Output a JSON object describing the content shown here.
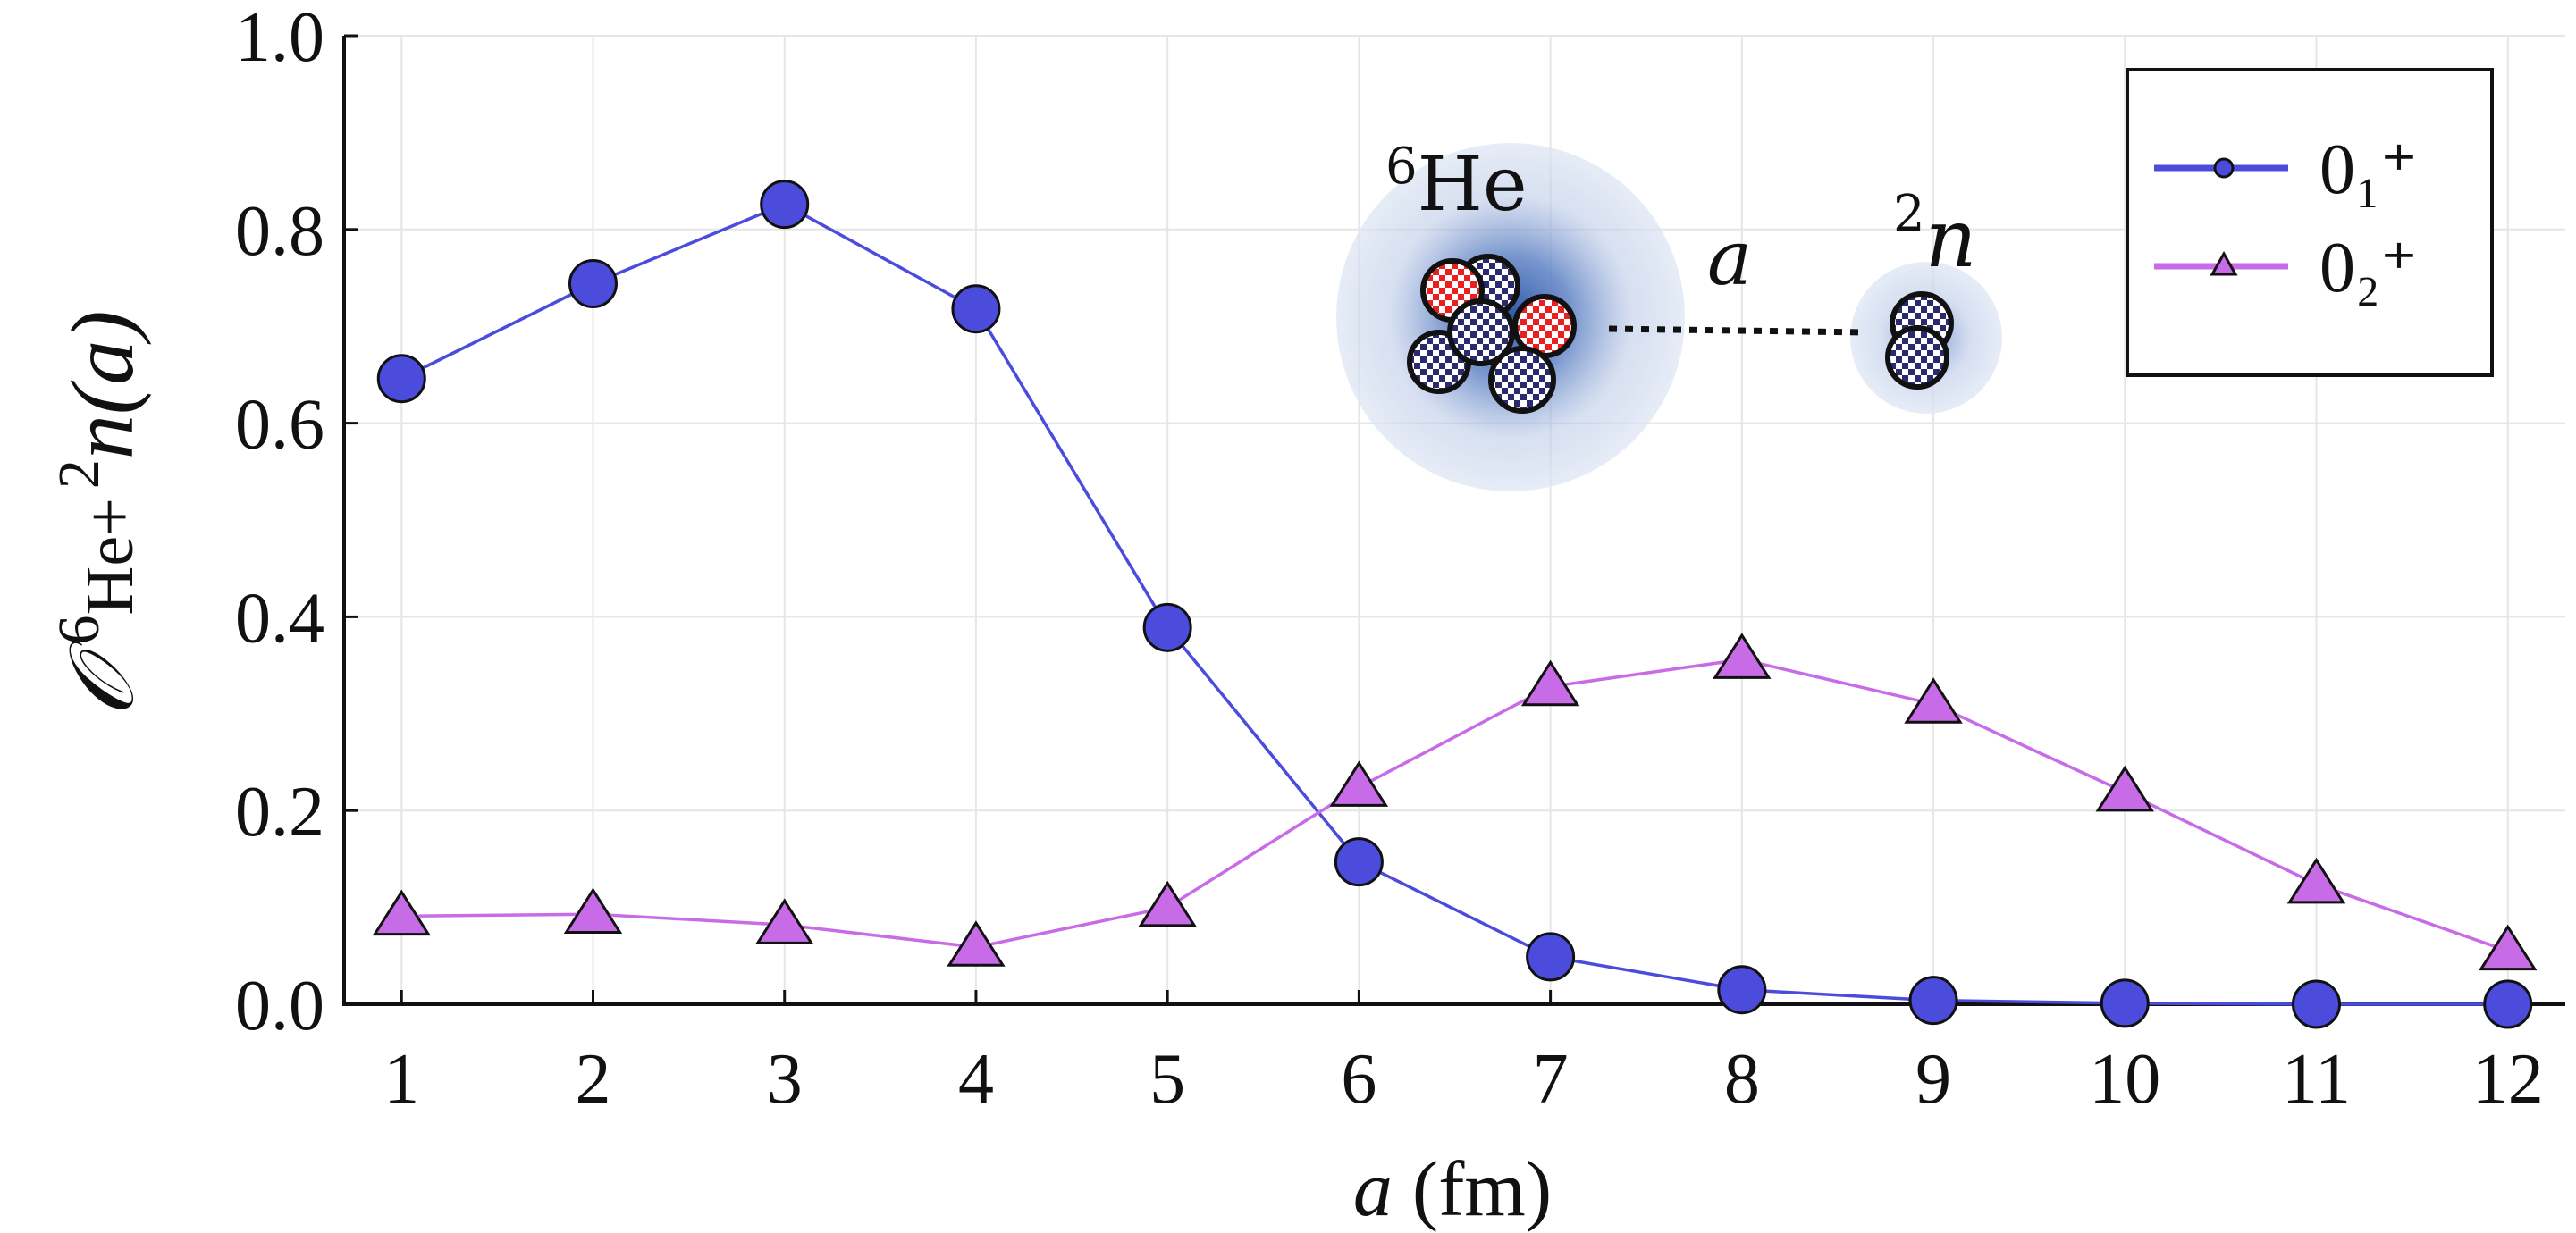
{
  "chart_data": {
    "type": "line",
    "xlabel": {
      "var": "a",
      "unit": "(fm)"
    },
    "ylabel": {
      "main": "𝒪",
      "sup1": "6",
      "mid": "He+",
      "sup2": "2",
      "var": "n",
      "arg": "(a)"
    },
    "x": [
      1,
      2,
      3,
      4,
      5,
      6,
      7,
      8,
      9,
      10,
      11,
      12
    ],
    "xlim": [
      0.7,
      12.3
    ],
    "ylim": [
      0.0,
      1.0
    ],
    "xticks": [
      "1",
      "2",
      "3",
      "4",
      "5",
      "6",
      "7",
      "8",
      "9",
      "10",
      "11",
      "12"
    ],
    "yticks": [
      "0.0",
      "0.2",
      "0.4",
      "0.6",
      "0.8",
      "1.0"
    ],
    "grid": true,
    "legend_position": "top-right",
    "series": [
      {
        "name": "0₁⁺",
        "marker": "circle",
        "color": "#4b4bdc",
        "values": [
          0.646,
          0.744,
          0.826,
          0.718,
          0.389,
          0.147,
          0.049,
          0.015,
          0.004,
          0.001,
          0.0,
          0.0
        ]
      },
      {
        "name": "0₂⁺",
        "marker": "triangle",
        "color": "#c86be6",
        "values": [
          0.091,
          0.093,
          0.082,
          0.059,
          0.1,
          0.224,
          0.328,
          0.356,
          0.31,
          0.219,
          0.124,
          0.055
        ]
      }
    ]
  },
  "inset": {
    "he6_label_sup": "6",
    "he6_label": "He",
    "n2_label_sup": "2",
    "n2_label": "n",
    "distance_label": "a"
  },
  "colors": {
    "proton": "#e82020",
    "neutron": "#2a2a6e",
    "halo": "#2f5aa8"
  }
}
